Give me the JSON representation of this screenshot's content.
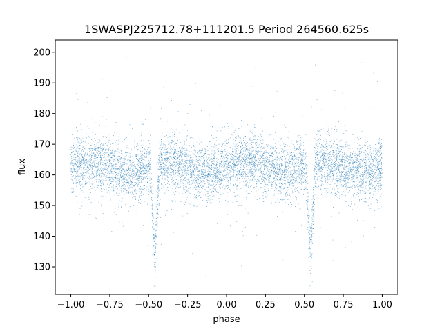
{
  "chart_data": {
    "type": "scatter",
    "title": "1SWASPJ225712.78+111201.5 Period 264560.625s",
    "xlabel": "phase",
    "ylabel": "flux",
    "xlim": [
      -1.1,
      1.1
    ],
    "ylim": [
      121,
      204
    ],
    "xticks": [
      -1.0,
      -0.75,
      -0.5,
      -0.25,
      0.0,
      0.25,
      0.5,
      0.75,
      1.0
    ],
    "xtick_labels": [
      "−1.00",
      "−0.75",
      "−0.50",
      "−0.25",
      "0.00",
      "0.25",
      "0.50",
      "0.75",
      "1.00"
    ],
    "yticks": [
      130,
      140,
      150,
      160,
      170,
      180,
      190,
      200
    ],
    "ytick_labels": [
      "130",
      "140",
      "150",
      "160",
      "170",
      "180",
      "190",
      "200"
    ],
    "grid": false,
    "legend": "none",
    "point_color": "#1f77b4",
    "series": [
      {
        "x_range": [
          -1.0,
          1.0
        ],
        "baseline_flux": 162.5,
        "scatter_sd": 4.5,
        "eclipses": [
          {
            "phase_center": -0.46,
            "min_flux": 132,
            "halfwidth_phase": 0.03
          },
          {
            "phase_center": 0.54,
            "min_flux": 132,
            "halfwidth_phase": 0.03
          }
        ],
        "outlier_range": [
          124,
          200
        ]
      }
    ]
  }
}
